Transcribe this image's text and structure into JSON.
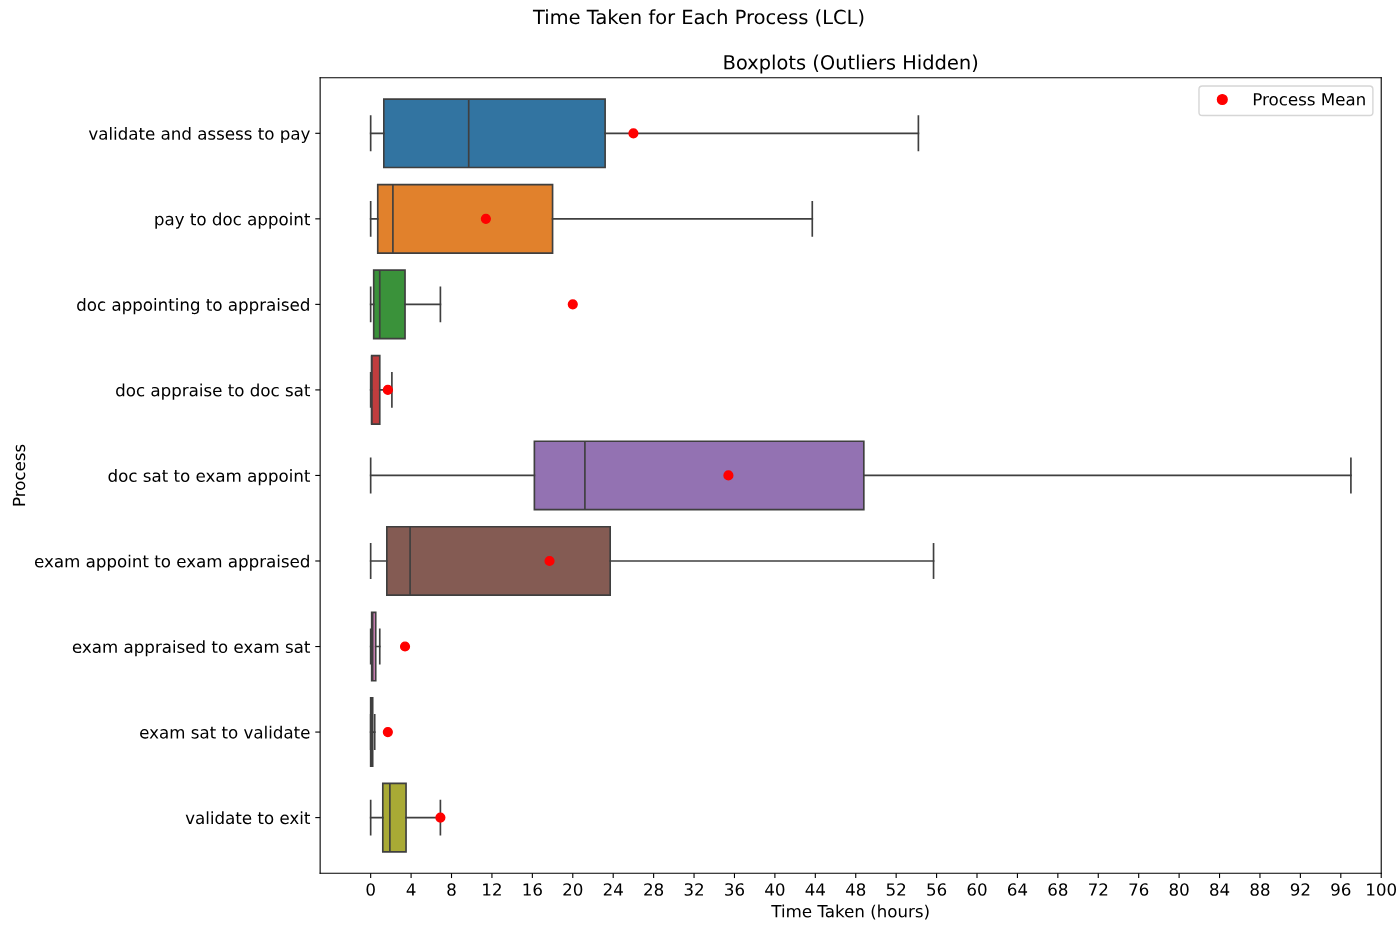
{
  "chart_data": {
    "type": "box",
    "orientation": "horizontal",
    "title": "Time Taken for Each Process (LCL)",
    "subtitle": "Boxplots (Outliers Hidden)",
    "xlabel": "Time Taken (hours)",
    "ylabel": "Process",
    "categories": [
      "validate and assess to pay",
      "pay to doc appoint",
      "doc appointing to appraised",
      "doc appraise to doc sat",
      "doc sat to exam appoint",
      "exam appoint to exam appraised",
      "exam appraised to exam sat",
      "exam sat to validate",
      "validate to exit"
    ],
    "boxes": [
      {
        "low": 0,
        "q1": 1.3,
        "median": 9.7,
        "q3": 23.2,
        "high": 54.2
      },
      {
        "low": 0,
        "q1": 0.7,
        "median": 2.2,
        "q3": 18.0,
        "high": 43.7
      },
      {
        "low": 0,
        "q1": 0.3,
        "median": 0.9,
        "q3": 3.4,
        "high": 6.9
      },
      {
        "low": 0,
        "q1": 0.1,
        "median": 0.1,
        "q3": 0.9,
        "high": 2.1
      },
      {
        "low": 0,
        "q1": 16.2,
        "median": 21.2,
        "q3": 48.8,
        "high": 97.0
      },
      {
        "low": 0,
        "q1": 1.6,
        "median": 3.9,
        "q3": 23.7,
        "high": 55.7
      },
      {
        "low": 0,
        "q1": 0.1,
        "median": 0.2,
        "q3": 0.5,
        "high": 0.9
      },
      {
        "low": 0,
        "q1": 0.0,
        "median": 0.05,
        "q3": 0.2,
        "high": 0.4
      },
      {
        "low": 0,
        "q1": 1.2,
        "median": 1.9,
        "q3": 3.5,
        "high": 6.9
      }
    ],
    "colors": [
      "#3274a1",
      "#e1812c",
      "#3a923a",
      "#c03d3e",
      "#9372b2",
      "#845b53",
      "#d684bd",
      "#7f7f7f",
      "#a9aa35"
    ],
    "series": [
      {
        "type": "scatter",
        "name": "Process Mean",
        "color": "#ff0000",
        "marker": "circle",
        "x": [
          "validate and assess to pay",
          "pay to doc appoint",
          "doc appointing to appraised",
          "doc appraise to doc sat",
          "doc sat to exam appoint",
          "exam appoint to exam appraised",
          "exam appraised to exam sat",
          "exam sat to validate",
          "validate to exit"
        ],
        "values": [
          26.0,
          11.4,
          20.0,
          1.7,
          35.4,
          17.7,
          3.4,
          1.7,
          6.9
        ]
      }
    ],
    "xlim": [
      -5,
      100
    ],
    "xticks": [
      0,
      4,
      8,
      12,
      16,
      20,
      24,
      28,
      32,
      36,
      40,
      44,
      48,
      52,
      56,
      60,
      64,
      68,
      72,
      76,
      80,
      84,
      88,
      92,
      96,
      100
    ],
    "legend": "top right",
    "grid": false
  }
}
